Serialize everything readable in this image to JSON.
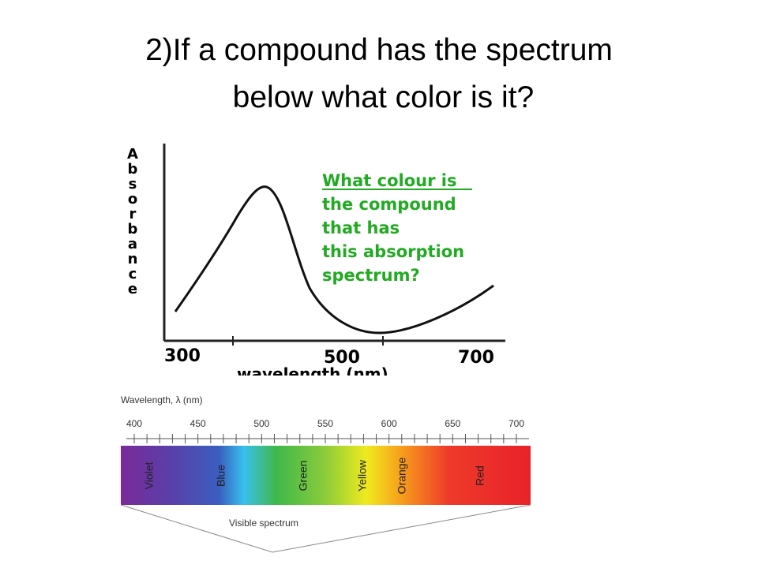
{
  "title": "2)If a compound has the spectrum below what color is it?",
  "absorbance_graph": {
    "y_label": "Absorbance",
    "x_ticks": [
      "300",
      "500",
      "700"
    ],
    "x_label": "wavelength (nm)",
    "question": [
      "What colour is",
      "the compound",
      "that has",
      "this absorption",
      "spectrum?"
    ]
  },
  "visible_spectrum": {
    "axis_title": "Wavelength, λ (nm)",
    "ticks": [
      "400",
      "450",
      "500",
      "550",
      "600",
      "650",
      "700"
    ],
    "bands": [
      "Violet",
      "Blue",
      "Green",
      "Yellow",
      "Orange",
      "Red"
    ],
    "caption": "Visible spectrum"
  }
}
